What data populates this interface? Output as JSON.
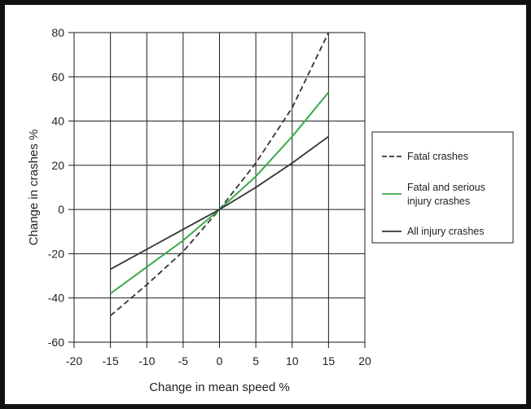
{
  "chart_data": {
    "type": "line",
    "xlabel": "Change in mean speed %",
    "ylabel": "Change in crashes %",
    "xlim": [
      -20,
      20
    ],
    "ylim": [
      -60,
      80
    ],
    "x_ticks": [
      -20,
      -15,
      -10,
      -5,
      0,
      5,
      10,
      15,
      20
    ],
    "y_ticks": [
      -60,
      -40,
      -20,
      0,
      20,
      40,
      60,
      80
    ],
    "grid": true,
    "legend_position": "right",
    "series": [
      {
        "name": "Fatal crashes",
        "style": "dashed",
        "color": "#333333",
        "points": [
          [
            -15,
            -48
          ],
          [
            -10,
            -34
          ],
          [
            -5,
            -19
          ],
          [
            0,
            0
          ],
          [
            5,
            21
          ],
          [
            10,
            46
          ],
          [
            15,
            80
          ]
        ]
      },
      {
        "name": "Fatal and serious injury crashes",
        "legend_lines": [
          "Fatal and serious",
          "injury crashes"
        ],
        "style": "solid",
        "color": "#3aaa4a",
        "points": [
          [
            -15,
            -38
          ],
          [
            -10,
            -26
          ],
          [
            -5,
            -14
          ],
          [
            0,
            0
          ],
          [
            5,
            15
          ],
          [
            10,
            33
          ],
          [
            15,
            53
          ]
        ]
      },
      {
        "name": "All injury crashes",
        "style": "solid",
        "color": "#333333",
        "points": [
          [
            -15,
            -27
          ],
          [
            -10,
            -18
          ],
          [
            -5,
            -9
          ],
          [
            0,
            0
          ],
          [
            5,
            10
          ],
          [
            10,
            21
          ],
          [
            15,
            33
          ]
        ]
      }
    ]
  }
}
